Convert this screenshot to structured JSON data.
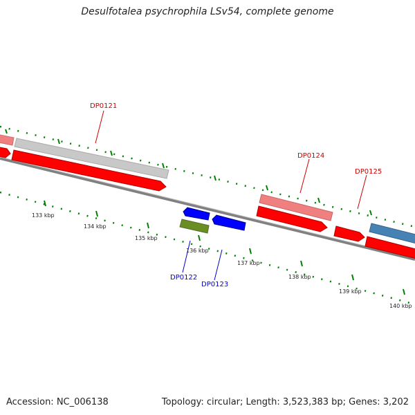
{
  "title": "Desulfotalea psychrophila LSv54, complete genome",
  "footer": {
    "accession": "Accession: NC_006138",
    "summary": "Topology: circular; Length: 3,523,383 bp; Genes: 3,202"
  },
  "scale_labels": [
    "133 kbp",
    "134 kbp",
    "135 kbp",
    "136 kbp",
    "137 kbp",
    "138 kbp",
    "139 kbp",
    "140 kbp"
  ],
  "gene_labels": {
    "dp0121": "DP0121",
    "dp0122": "DP0122",
    "dp0123": "DP0123",
    "dp0124": "DP0124",
    "dp0125": "DP0125"
  },
  "colors": {
    "gene_red": "#ff0000",
    "gene_pink": "#f08080",
    "gene_gray": "#c0c0c0",
    "gene_blue": "#0000ff",
    "gene_olive": "#6b8e23",
    "gene_steelblue": "#4682b4",
    "backbone": "#808080",
    "tick_green": "#008000",
    "label_red": "#cc0000",
    "label_blue": "#0000cc"
  }
}
